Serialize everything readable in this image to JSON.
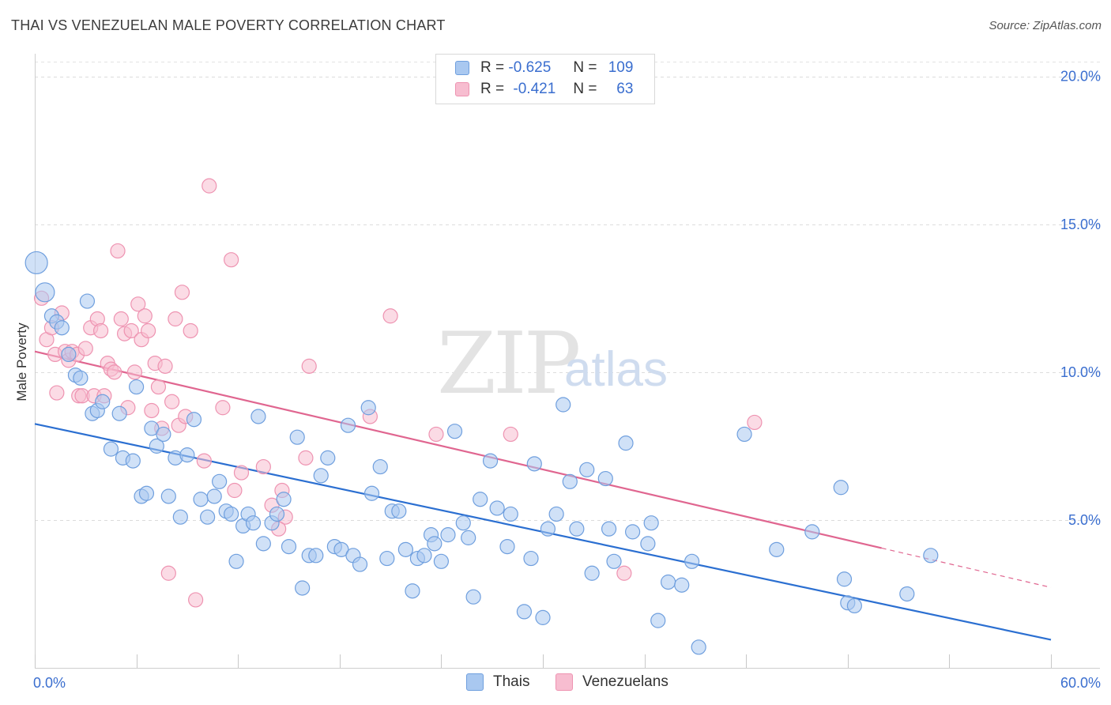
{
  "header": {
    "title": "THAI VS VENEZUELAN MALE POVERTY CORRELATION CHART",
    "source": "Source: ZipAtlas.com"
  },
  "watermark": {
    "zip": "ZIP",
    "atlas": "atlas"
  },
  "legend": {
    "rows": [
      {
        "r_label": "R =",
        "r_value": "-0.625",
        "n_label": "N =",
        "n_value": "109"
      },
      {
        "r_label": "R =",
        "r_value": "-0.421",
        "n_label": "N =",
        "n_value": "63"
      }
    ]
  },
  "bottom_legend": {
    "thais": "Thais",
    "venezuelans": "Venezuelans"
  },
  "colors": {
    "thais_fill": "#a9c8f0",
    "thais_stroke": "#6f9fde",
    "thais_line": "#2b6fd1",
    "venezuelans_fill": "#f7bdd0",
    "venezuelans_stroke": "#ee93b1",
    "venezuelans_line": "#e06690",
    "axis_label": "#3a6ecf"
  },
  "chart_data": {
    "type": "scatter",
    "title": "THAI VS VENEZUELAN MALE POVERTY CORRELATION CHART",
    "xlabel": "",
    "ylabel": "Male Poverty",
    "xlim": [
      0,
      60
    ],
    "ylim": [
      0,
      20.5
    ],
    "x_tick_labels": [
      "0.0%",
      "60.0%"
    ],
    "y_ticks": [
      5,
      10,
      15,
      20
    ],
    "y_tick_labels": [
      "5.0%",
      "10.0%",
      "15.0%",
      "20.0%"
    ],
    "grid": true,
    "legend_position": "top-center",
    "series": [
      {
        "name": "Thais",
        "r": -0.625,
        "n": 109,
        "trend": {
          "x": [
            0,
            60
          ],
          "y": [
            8.25,
            0.95
          ]
        },
        "points": [
          [
            0.1,
            13.7
          ],
          [
            0.6,
            12.7
          ],
          [
            1.0,
            11.9
          ],
          [
            1.3,
            11.7
          ],
          [
            1.6,
            11.5
          ],
          [
            2.0,
            10.6
          ],
          [
            2.4,
            9.9
          ],
          [
            2.7,
            9.8
          ],
          [
            3.1,
            12.4
          ],
          [
            3.4,
            8.6
          ],
          [
            3.7,
            8.7
          ],
          [
            4.0,
            9.0
          ],
          [
            4.5,
            7.4
          ],
          [
            5.0,
            8.6
          ],
          [
            5.2,
            7.1
          ],
          [
            5.8,
            7.0
          ],
          [
            6.0,
            9.5
          ],
          [
            6.3,
            5.8
          ],
          [
            6.6,
            5.9
          ],
          [
            6.9,
            8.1
          ],
          [
            7.2,
            7.5
          ],
          [
            7.6,
            7.9
          ],
          [
            7.9,
            5.8
          ],
          [
            8.3,
            7.1
          ],
          [
            8.6,
            5.1
          ],
          [
            9.0,
            7.2
          ],
          [
            9.4,
            8.4
          ],
          [
            9.8,
            5.7
          ],
          [
            10.2,
            5.1
          ],
          [
            10.6,
            5.8
          ],
          [
            10.9,
            6.3
          ],
          [
            11.3,
            5.3
          ],
          [
            11.6,
            5.2
          ],
          [
            11.9,
            3.6
          ],
          [
            12.3,
            4.8
          ],
          [
            12.6,
            5.2
          ],
          [
            12.9,
            4.9
          ],
          [
            13.2,
            8.5
          ],
          [
            13.5,
            4.2
          ],
          [
            14.0,
            4.9
          ],
          [
            14.3,
            5.2
          ],
          [
            14.7,
            5.7
          ],
          [
            15.0,
            4.1
          ],
          [
            15.5,
            7.8
          ],
          [
            15.8,
            2.7
          ],
          [
            16.2,
            3.8
          ],
          [
            16.6,
            3.8
          ],
          [
            16.9,
            6.5
          ],
          [
            17.3,
            7.1
          ],
          [
            17.7,
            4.1
          ],
          [
            18.1,
            4.0
          ],
          [
            18.5,
            8.2
          ],
          [
            18.8,
            3.8
          ],
          [
            19.2,
            3.5
          ],
          [
            19.7,
            8.8
          ],
          [
            19.9,
            5.9
          ],
          [
            20.4,
            6.8
          ],
          [
            20.8,
            3.7
          ],
          [
            21.1,
            5.3
          ],
          [
            21.5,
            5.3
          ],
          [
            21.9,
            4.0
          ],
          [
            22.3,
            2.6
          ],
          [
            22.6,
            3.7
          ],
          [
            23.0,
            3.8
          ],
          [
            23.4,
            4.5
          ],
          [
            23.6,
            4.2
          ],
          [
            24.0,
            3.6
          ],
          [
            24.4,
            4.5
          ],
          [
            24.8,
            8.0
          ],
          [
            25.3,
            4.9
          ],
          [
            25.6,
            4.4
          ],
          [
            25.9,
            2.4
          ],
          [
            26.3,
            5.7
          ],
          [
            26.9,
            7.0
          ],
          [
            27.3,
            5.4
          ],
          [
            27.9,
            4.1
          ],
          [
            28.1,
            5.2
          ],
          [
            28.9,
            1.9
          ],
          [
            29.3,
            3.7
          ],
          [
            29.5,
            6.9
          ],
          [
            30.0,
            1.7
          ],
          [
            30.3,
            4.7
          ],
          [
            30.8,
            5.2
          ],
          [
            31.2,
            8.9
          ],
          [
            31.6,
            6.3
          ],
          [
            32.0,
            4.7
          ],
          [
            32.6,
            6.7
          ],
          [
            32.9,
            3.2
          ],
          [
            33.7,
            6.4
          ],
          [
            33.9,
            4.7
          ],
          [
            34.2,
            3.6
          ],
          [
            34.9,
            7.6
          ],
          [
            35.3,
            4.6
          ],
          [
            36.2,
            4.2
          ],
          [
            36.4,
            4.9
          ],
          [
            36.8,
            1.6
          ],
          [
            37.4,
            2.9
          ],
          [
            38.2,
            2.8
          ],
          [
            38.8,
            3.6
          ],
          [
            39.2,
            0.7
          ],
          [
            41.9,
            7.9
          ],
          [
            43.8,
            4.0
          ],
          [
            45.9,
            4.6
          ],
          [
            47.6,
            6.1
          ],
          [
            47.8,
            3.0
          ],
          [
            48.0,
            2.2
          ],
          [
            48.4,
            2.1
          ],
          [
            51.5,
            2.5
          ],
          [
            52.9,
            3.8
          ]
        ]
      },
      {
        "name": "Venezuelans",
        "r": -0.421,
        "n": 63,
        "trend": {
          "x": [
            0,
            50
          ],
          "y": [
            10.7,
            4.05
          ]
        },
        "trend_dashed": {
          "x": [
            50,
            60
          ],
          "y": [
            4.05,
            2.72
          ]
        },
        "points": [
          [
            0.4,
            12.5
          ],
          [
            0.7,
            11.1
          ],
          [
            1.0,
            11.5
          ],
          [
            1.2,
            10.6
          ],
          [
            1.3,
            9.3
          ],
          [
            1.6,
            12.0
          ],
          [
            1.8,
            10.7
          ],
          [
            2.0,
            10.4
          ],
          [
            2.2,
            10.7
          ],
          [
            2.5,
            10.6
          ],
          [
            2.6,
            9.2
          ],
          [
            2.8,
            9.2
          ],
          [
            3.0,
            10.8
          ],
          [
            3.3,
            11.5
          ],
          [
            3.5,
            9.2
          ],
          [
            3.7,
            11.8
          ],
          [
            3.9,
            11.4
          ],
          [
            4.1,
            9.2
          ],
          [
            4.3,
            10.3
          ],
          [
            4.5,
            10.1
          ],
          [
            4.7,
            10.0
          ],
          [
            4.9,
            14.1
          ],
          [
            5.1,
            11.8
          ],
          [
            5.3,
            11.3
          ],
          [
            5.5,
            8.8
          ],
          [
            5.7,
            11.4
          ],
          [
            5.9,
            10.0
          ],
          [
            6.1,
            12.3
          ],
          [
            6.3,
            11.1
          ],
          [
            6.5,
            11.9
          ],
          [
            6.7,
            11.4
          ],
          [
            6.9,
            8.7
          ],
          [
            7.1,
            10.3
          ],
          [
            7.3,
            9.5
          ],
          [
            7.5,
            8.1
          ],
          [
            7.7,
            10.2
          ],
          [
            7.9,
            3.2
          ],
          [
            8.1,
            9.0
          ],
          [
            8.3,
            11.8
          ],
          [
            8.5,
            8.2
          ],
          [
            8.7,
            12.7
          ],
          [
            8.9,
            8.5
          ],
          [
            9.2,
            11.4
          ],
          [
            9.5,
            2.3
          ],
          [
            10.0,
            7.0
          ],
          [
            10.3,
            16.3
          ],
          [
            11.1,
            8.8
          ],
          [
            11.6,
            13.8
          ],
          [
            11.8,
            6.0
          ],
          [
            12.2,
            6.6
          ],
          [
            13.5,
            6.8
          ],
          [
            14.0,
            5.5
          ],
          [
            14.6,
            6.0
          ],
          [
            14.8,
            5.1
          ],
          [
            14.4,
            4.7
          ],
          [
            16.0,
            7.1
          ],
          [
            16.2,
            10.2
          ],
          [
            19.8,
            8.5
          ],
          [
            21.0,
            11.9
          ],
          [
            23.7,
            7.9
          ],
          [
            28.1,
            7.9
          ],
          [
            34.8,
            3.2
          ],
          [
            42.5,
            8.3
          ]
        ]
      }
    ]
  }
}
